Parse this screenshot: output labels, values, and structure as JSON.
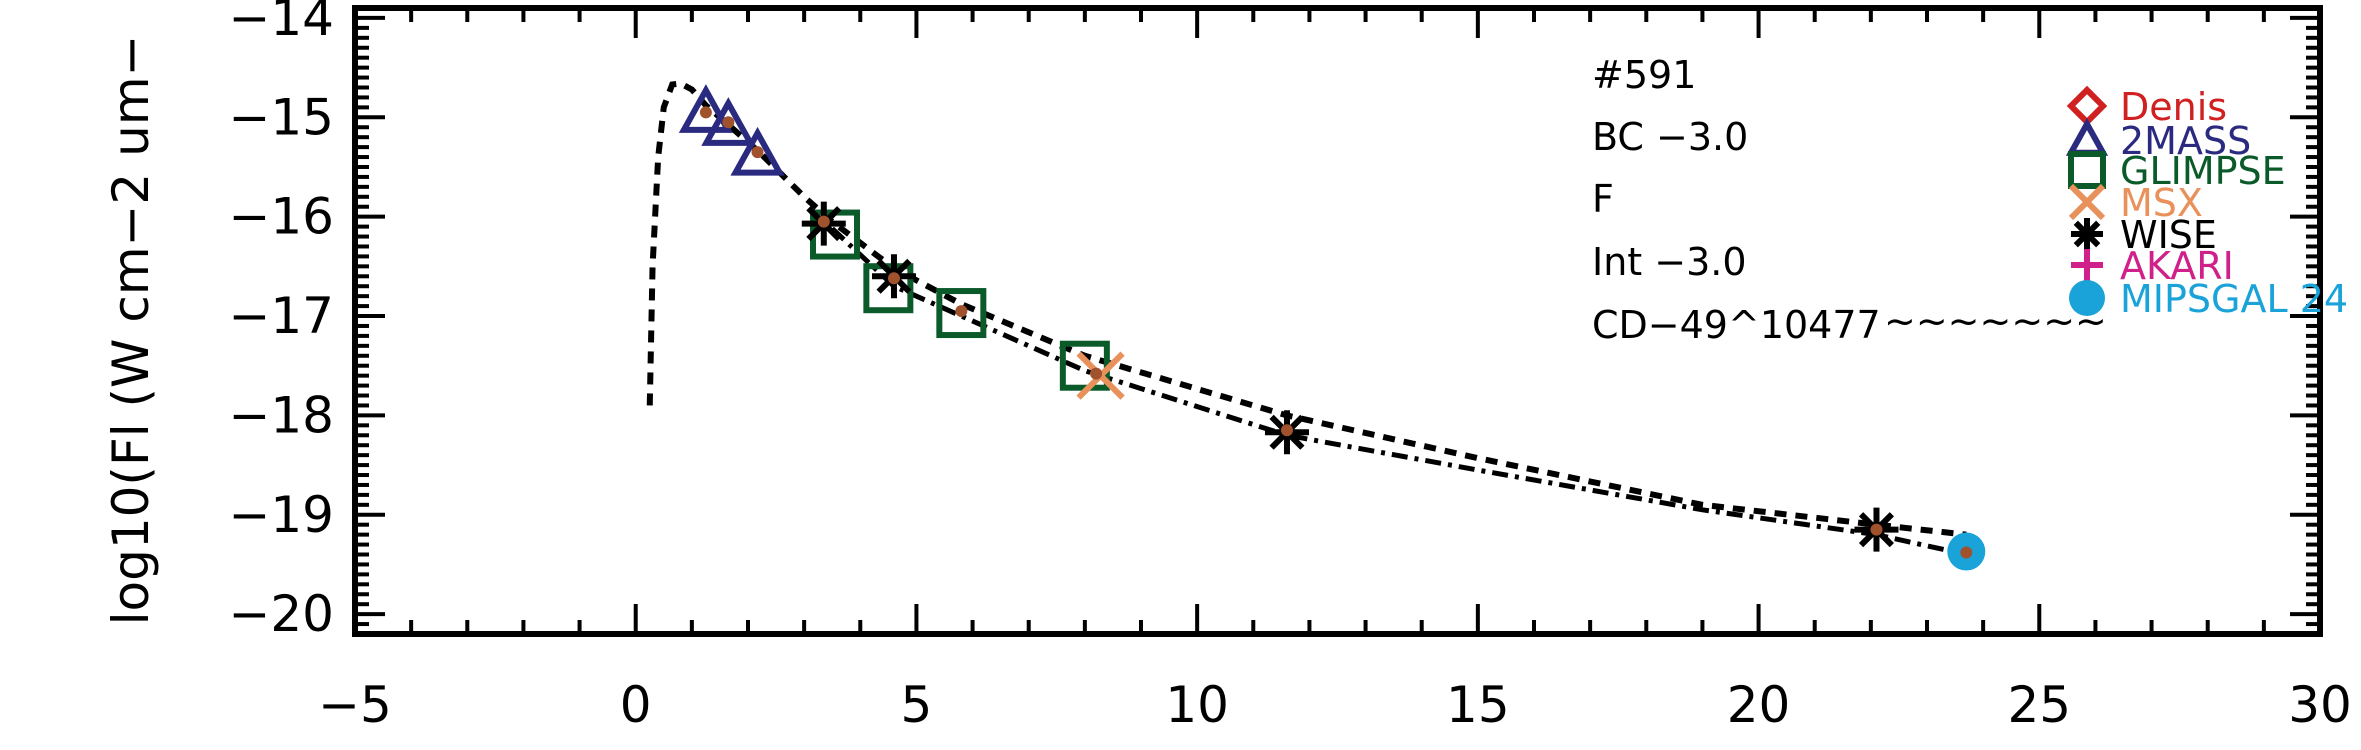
{
  "chart_data": {
    "type": "scatter",
    "title": "",
    "xlabel": "",
    "ylabel": "log10(Fl (W cm−2 um−",
    "xlim": [
      -5,
      30
    ],
    "ylim": [
      -20.2,
      -13.9
    ],
    "x_ticks": [
      -5,
      0,
      5,
      10,
      15,
      20,
      25,
      30
    ],
    "x_tick_labels": [
      "−5",
      "0",
      "5",
      "10",
      "15",
      "20",
      "25",
      "30"
    ],
    "y_ticks": [
      -14,
      -15,
      -16,
      -17,
      -18,
      -19,
      -20
    ],
    "y_tick_labels": [
      "−14",
      "−15",
      "−16",
      "−17",
      "−18",
      "−19",
      "−20"
    ],
    "annotations": [
      "#591",
      "BC −3.0",
      "F",
      "Int −3.0",
      "CD−49^10477"
    ],
    "annotation_squiggle": "~~~~~~~",
    "legend": [
      {
        "label": "Denis",
        "marker": "diamond",
        "color": "#d02020"
      },
      {
        "label": "2MASS",
        "marker": "triangle",
        "color": "#2a2a80"
      },
      {
        "label": "GLIMPSE",
        "marker": "square",
        "color": "#0b5a2a"
      },
      {
        "label": "MSX",
        "marker": "x",
        "color": "#e8915a"
      },
      {
        "label": "WISE",
        "marker": "asterisk",
        "color": "#000000"
      },
      {
        "label": "AKARI",
        "marker": "plus",
        "color": "#d0208a"
      },
      {
        "label": "MIPSGAL 24",
        "marker": "circle",
        "color": "#1aa3d8"
      }
    ],
    "legend_position": "top-right",
    "series": [
      {
        "name": "2MASS",
        "marker": "triangle",
        "color": "#2a2a80",
        "x": [
          1.25,
          1.65,
          2.17
        ],
        "y": [
          -14.95,
          -15.08,
          -15.38
        ]
      },
      {
        "name": "GLIMPSE",
        "marker": "square",
        "color": "#0b5a2a",
        "x": [
          3.55,
          4.5,
          5.8,
          8.0
        ],
        "y": [
          -16.18,
          -16.72,
          -16.97,
          -17.5
        ]
      },
      {
        "name": "MSX",
        "marker": "x",
        "color": "#e8915a",
        "x": [
          8.28
        ],
        "y": [
          -17.6
        ]
      },
      {
        "name": "WISE",
        "marker": "asterisk",
        "color": "#000000",
        "x": [
          3.35,
          4.6,
          11.6,
          22.1
        ],
        "y": [
          -16.07,
          -16.6,
          -18.17,
          -19.15
        ]
      },
      {
        "name": "MIPSGAL 24",
        "marker": "circle",
        "color": "#1aa3d8",
        "x": [
          23.7
        ],
        "y": [
          -19.37
        ]
      }
    ],
    "model_dots": {
      "color": "#a0522d",
      "x": [
        1.25,
        1.65,
        2.17,
        3.35,
        4.6,
        5.8,
        8.2,
        11.6,
        22.1,
        23.7
      ],
      "y": [
        -14.95,
        -15.05,
        -15.35,
        -16.05,
        -16.62,
        -16.95,
        -17.58,
        -18.15,
        -19.15,
        -19.38
      ]
    },
    "model_curve_dashed": {
      "x": [
        0.25,
        0.3,
        0.4,
        0.5,
        0.65,
        0.8,
        1.0,
        1.25,
        1.6,
        2.2,
        3.0,
        3.5,
        4.6,
        5.8,
        8.0,
        11.6,
        15.0,
        19.0,
        22.1,
        23.7
      ],
      "y": [
        -17.9,
        -16.5,
        -15.4,
        -14.9,
        -14.67,
        -14.66,
        -14.72,
        -14.88,
        -15.05,
        -15.35,
        -15.8,
        -16.05,
        -16.52,
        -16.88,
        -17.4,
        -18.0,
        -18.43,
        -18.9,
        -19.1,
        -19.2
      ]
    },
    "model_curve_dashdot": {
      "x": [
        3.5,
        4.6,
        5.8,
        8.0,
        11.6,
        15.0,
        19.0,
        22.1,
        23.7
      ],
      "y": [
        -16.12,
        -16.7,
        -17.0,
        -17.55,
        -18.2,
        -18.55,
        -18.95,
        -19.2,
        -19.4
      ]
    }
  }
}
